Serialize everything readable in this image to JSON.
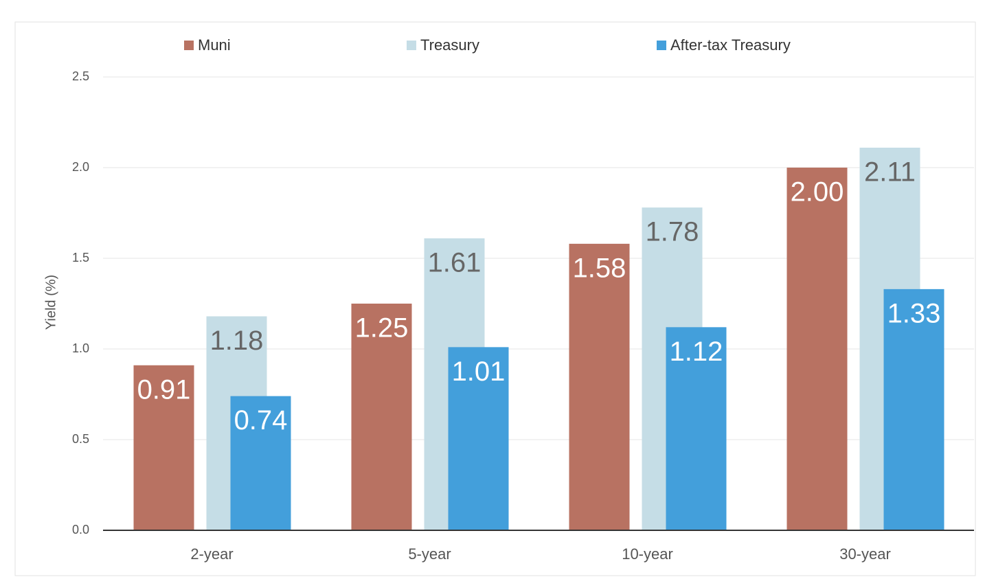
{
  "chart_data": {
    "type": "bar",
    "y_label": "Yield (%)",
    "categories": [
      "2-year",
      "5-year",
      "10-year",
      "30-year"
    ],
    "series": [
      {
        "name": "Muni",
        "color": "#b87262",
        "values": [
          0.91,
          1.25,
          1.58,
          2.0
        ],
        "value_labels": [
          "0.91",
          "1.25",
          "1.58",
          "2.00"
        ]
      },
      {
        "name": "Treasury",
        "color": "#c5dde6",
        "values": [
          1.18,
          1.61,
          1.78,
          2.11
        ],
        "value_labels": [
          "1.18",
          "1.61",
          "1.78",
          "2.11"
        ]
      },
      {
        "name": "After-tax Treasury",
        "color": "#439fdb",
        "values": [
          0.74,
          1.01,
          1.12,
          1.33
        ],
        "value_labels": [
          "0.74",
          "1.01",
          "1.12",
          "1.33"
        ]
      }
    ],
    "ylim": [
      0,
      2.5
    ],
    "yticks": [
      {
        "value": 0,
        "label": "0.0"
      },
      0.5,
      {
        "value": 1,
        "label": "1.0"
      },
      1.5,
      {
        "value": 2,
        "label": "2.0"
      },
      2.5
    ],
    "grid": true
  }
}
